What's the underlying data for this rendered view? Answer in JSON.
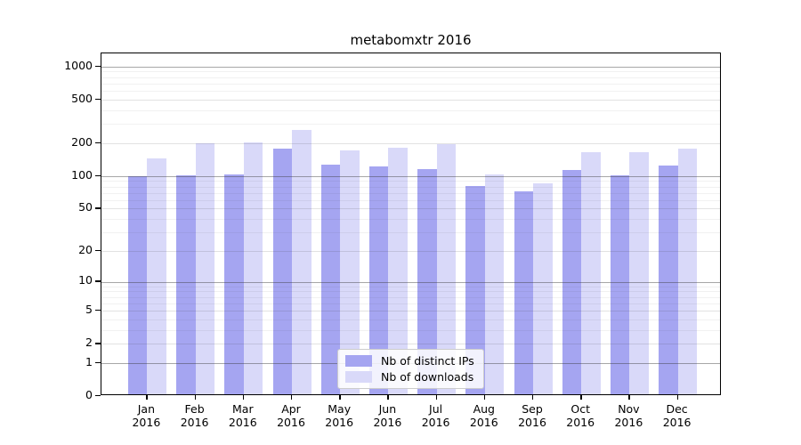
{
  "title": "metabomxtr 2016",
  "chart_data": {
    "type": "bar",
    "title": "metabomxtr 2016",
    "categories": [
      "Jan",
      "Feb",
      "Mar",
      "Apr",
      "May",
      "Jun",
      "Jul",
      "Aug",
      "Sep",
      "Oct",
      "Nov",
      "Dec"
    ],
    "category_year": "2016",
    "series": [
      {
        "name": "Nb of distinct IPs",
        "color": "#a5a5f1",
        "values": [
          95,
          97,
          100,
          172,
          123,
          118,
          112,
          78,
          69,
          109,
          97,
          119
        ]
      },
      {
        "name": "Nb of downloads",
        "color": "#d9d9f9",
        "values": [
          139,
          193,
          197,
          253,
          165,
          176,
          190,
          100,
          82,
          160,
          158,
          170
        ]
      }
    ],
    "xlabel": "",
    "ylabel": "",
    "y_ticks": [
      0,
      1,
      2,
      5,
      10,
      20,
      50,
      100,
      200,
      500,
      1000
    ],
    "y_scale": "log10(value+1)",
    "ylim": [
      0,
      1318
    ],
    "grid": true,
    "grid_over_bars": true,
    "legend_position": "inside-bottom-center",
    "colors": {
      "grid_major": "rgba(60,60,60,0.45)",
      "grid_labeled": "rgba(60,60,60,0.15)",
      "grid_minor": "rgba(60,60,60,0.07)",
      "axis": "#000000",
      "background": "#ffffff"
    },
    "grid_values": {
      "major_power10": [
        1,
        10,
        100,
        1000
      ],
      "labeled": [
        2,
        5,
        20,
        50,
        200,
        500
      ],
      "minor": [
        3,
        4,
        6,
        7,
        8,
        9,
        30,
        40,
        60,
        70,
        80,
        90,
        300,
        400,
        600,
        700,
        800,
        900
      ]
    }
  }
}
